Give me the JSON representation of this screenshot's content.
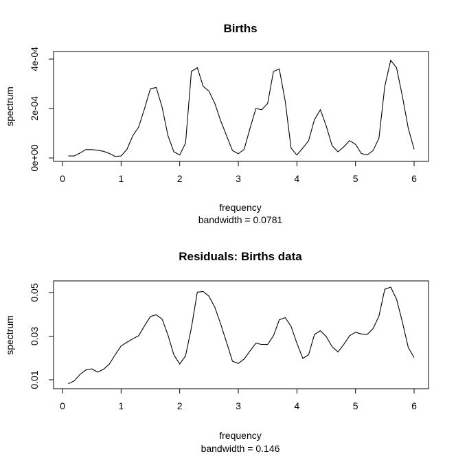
{
  "chart_data": [
    {
      "type": "line",
      "title": "Births",
      "xlabel": "frequency",
      "ylabel": "spectrum",
      "sublabel": "bandwidth = 0.0781",
      "xlim": [
        0,
        6
      ],
      "ylim": [
        0,
        0.0004
      ],
      "xticks": [
        0,
        1,
        2,
        3,
        4,
        5,
        6
      ],
      "xtick_labels": [
        "0",
        "1",
        "2",
        "3",
        "4",
        "5",
        "6"
      ],
      "yticks": [
        0,
        0.0002,
        0.0004
      ],
      "ytick_labels": [
        "0e+00",
        "2e-04",
        "4e-04"
      ],
      "grid": false,
      "series": [
        {
          "x": [
            0.1,
            0.2,
            0.3,
            0.4,
            0.5,
            0.6,
            0.7,
            0.8,
            0.9,
            1.0,
            1.1,
            1.2,
            1.3,
            1.4,
            1.5,
            1.6,
            1.7,
            1.8,
            1.9,
            2.0,
            2.1,
            2.2,
            2.3,
            2.4,
            2.5,
            2.6,
            2.7,
            2.8,
            2.9,
            3.0,
            3.1,
            3.2,
            3.3,
            3.4,
            3.5,
            3.6,
            3.7,
            3.8,
            3.9,
            4.0,
            4.1,
            4.2,
            4.3,
            4.4,
            4.5,
            4.6,
            4.7,
            4.8,
            4.9,
            5.0,
            5.1,
            5.2,
            5.3,
            5.4,
            5.5,
            5.6,
            5.7,
            5.8,
            5.9,
            6.0
          ],
          "values": [
            8e-06,
            8e-06,
            2e-05,
            3.4e-05,
            3.4e-05,
            3.1e-05,
            2.7e-05,
            1.8e-05,
            6e-06,
            8e-06,
            3.5e-05,
            9e-05,
            0.000125,
            0.0002,
            0.00028,
            0.000285,
            0.000205,
            9e-05,
            2.5e-05,
            1.2e-05,
            6e-05,
            0.00035,
            0.000365,
            0.00029,
            0.00027,
            0.00022,
            0.00015,
            9e-05,
            3e-05,
            1.7e-05,
            3.5e-05,
            0.00012,
            0.0002,
            0.000195,
            0.00022,
            0.00035,
            0.00036,
            0.00023,
            4e-05,
            1.2e-05,
            4e-05,
            7e-05,
            0.000155,
            0.000195,
            0.00013,
            5e-05,
            2.5e-05,
            4.5e-05,
            7e-05,
            5.5e-05,
            1.8e-05,
            1.2e-05,
            3e-05,
            8e-05,
            0.00029,
            0.000395,
            0.000365,
            0.00025,
            0.00012,
            3.5e-05
          ]
        }
      ]
    },
    {
      "type": "line",
      "title": "Residuals: Births data",
      "xlabel": "frequency",
      "ylabel": "spectrum",
      "sublabel": "bandwidth = 0.146",
      "xlim": [
        0,
        6
      ],
      "ylim": [
        0.005,
        0.055
      ],
      "xticks": [
        0,
        1,
        2,
        3,
        4,
        5,
        6
      ],
      "xtick_labels": [
        "0",
        "1",
        "2",
        "3",
        "4",
        "5",
        "6"
      ],
      "yticks": [
        0.01,
        0.03,
        0.05
      ],
      "ytick_labels": [
        "0.01",
        "0.03",
        "0.05"
      ],
      "grid": false,
      "series": [
        {
          "x": [
            0.1,
            0.2,
            0.3,
            0.4,
            0.5,
            0.6,
            0.7,
            0.8,
            0.9,
            1.0,
            1.1,
            1.2,
            1.3,
            1.4,
            1.5,
            1.6,
            1.7,
            1.8,
            1.9,
            2.0,
            2.1,
            2.2,
            2.3,
            2.4,
            2.5,
            2.6,
            2.7,
            2.8,
            2.9,
            3.0,
            3.1,
            3.2,
            3.3,
            3.4,
            3.5,
            3.6,
            3.7,
            3.8,
            3.9,
            4.0,
            4.1,
            4.2,
            4.3,
            4.4,
            4.5,
            4.6,
            4.7,
            4.8,
            4.9,
            5.0,
            5.1,
            5.2,
            5.3,
            5.4,
            5.5,
            5.6,
            5.7,
            5.8,
            5.9,
            6.0
          ],
          "values": [
            0.0082,
            0.0095,
            0.0125,
            0.0145,
            0.015,
            0.0135,
            0.0148,
            0.0172,
            0.0215,
            0.0255,
            0.0272,
            0.0288,
            0.0302,
            0.0348,
            0.039,
            0.0398,
            0.0378,
            0.0305,
            0.0215,
            0.0172,
            0.021,
            0.0338,
            0.0502,
            0.0505,
            0.0483,
            0.0432,
            0.0355,
            0.0272,
            0.0185,
            0.0175,
            0.0195,
            0.0232,
            0.0268,
            0.0262,
            0.0262,
            0.0302,
            0.0375,
            0.0385,
            0.0345,
            0.0268,
            0.0198,
            0.0215,
            0.0308,
            0.0325,
            0.0298,
            0.0252,
            0.0228,
            0.0262,
            0.0302,
            0.0318,
            0.031,
            0.0308,
            0.0335,
            0.0392,
            0.0515,
            0.0525,
            0.047,
            0.0365,
            0.0248,
            0.0202
          ]
        }
      ]
    }
  ]
}
